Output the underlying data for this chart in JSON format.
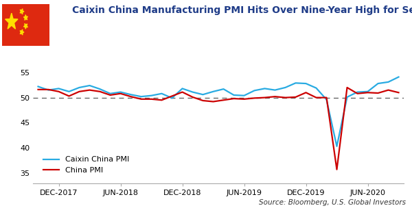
{
  "title": "Caixin China Manufacturing PMI Hits Over Nine-Year High for Second Straight Month",
  "source_text": "Source: Bloomberg, U.S. Global Investors",
  "caixin_color": "#29ABE2",
  "china_color": "#CC0000",
  "dashed_line_y": 50,
  "ylim": [
    33,
    57
  ],
  "yticks": [
    35,
    40,
    45,
    50,
    55
  ],
  "legend_labels": [
    "Caixin China PMI",
    "China PMI"
  ],
  "caixin_pmi": [
    52.2,
    51.5,
    51.8,
    51.2,
    52.0,
    52.4,
    51.7,
    50.8,
    51.1,
    50.6,
    50.2,
    50.4,
    50.8,
    49.9,
    51.8,
    51.1,
    50.6,
    51.2,
    51.7,
    50.5,
    50.4,
    51.4,
    51.8,
    51.5,
    52.0,
    52.9,
    52.8,
    51.9,
    49.6,
    40.3,
    50.1,
    51.1,
    51.2,
    52.8,
    53.1,
    54.1
  ],
  "china_pmi": [
    51.6,
    51.6,
    51.2,
    50.3,
    51.2,
    51.5,
    51.2,
    50.5,
    50.8,
    50.2,
    49.7,
    49.7,
    49.5,
    50.3,
    51.1,
    50.1,
    49.4,
    49.2,
    49.5,
    49.8,
    49.7,
    49.9,
    50.0,
    50.2,
    50.0,
    50.1,
    51.0,
    50.0,
    50.0,
    35.7,
    52.0,
    50.8,
    51.0,
    50.9,
    51.5,
    51.0
  ],
  "x_tick_positions": [
    2,
    8,
    14,
    20,
    26,
    32
  ],
  "x_tick_labels": [
    "DEC-2017",
    "JUN-2018",
    "DEC-2018",
    "JUN-2019",
    "DEC-2019",
    "JUN-2020"
  ],
  "background_color": "#FFFFFF",
  "title_color": "#1F3C88",
  "title_fontsize": 10.0,
  "axis_label_fontsize": 8,
  "source_fontsize": 7.5
}
